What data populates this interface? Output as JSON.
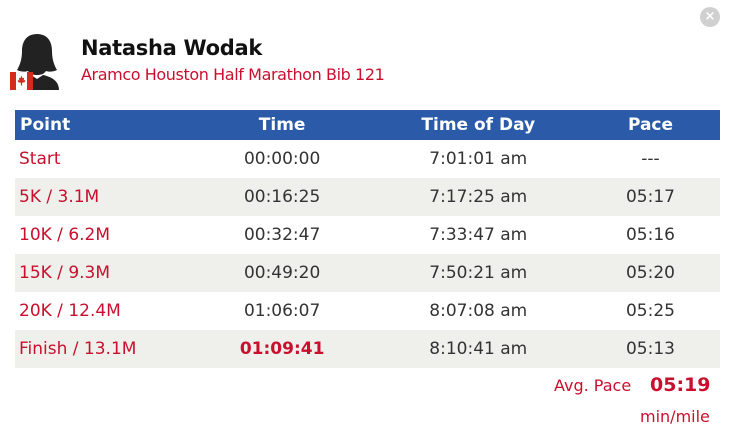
{
  "close": {
    "label": "×"
  },
  "athlete": {
    "name": "Natasha Wodak",
    "race": "Aramco Houston Half Marathon Bib 121",
    "country_flag": "canada-flag-icon"
  },
  "table": {
    "headers": {
      "point": "Point",
      "time": "Time",
      "time_of_day": "Time of Day",
      "pace": "Pace"
    },
    "rows": [
      {
        "point": "Start",
        "time": "00:00:00",
        "time_of_day": "7:01:01 am",
        "pace": "---"
      },
      {
        "point": "5K / 3.1M",
        "time": "00:16:25",
        "time_of_day": "7:17:25 am",
        "pace": "05:17"
      },
      {
        "point": "10K / 6.2M",
        "time": "00:32:47",
        "time_of_day": "7:33:47 am",
        "pace": "05:16"
      },
      {
        "point": "15K / 9.3M",
        "time": "00:49:20",
        "time_of_day": "7:50:21 am",
        "pace": "05:20"
      },
      {
        "point": "20K / 12.4M",
        "time": "01:06:07",
        "time_of_day": "8:07:08 am",
        "pace": "05:25"
      },
      {
        "point": "Finish / 13.1M",
        "time": "01:09:41",
        "time_of_day": "8:10:41 am",
        "pace": "05:13"
      }
    ]
  },
  "summary": {
    "avg_pace_label": "Avg. Pace",
    "avg_pace_value": "05:19",
    "avg_pace_unit": "min/mile"
  },
  "colors": {
    "accent_red": "#c8102e",
    "header_blue": "#2a5aa8",
    "row_stripe": "#efefec"
  }
}
